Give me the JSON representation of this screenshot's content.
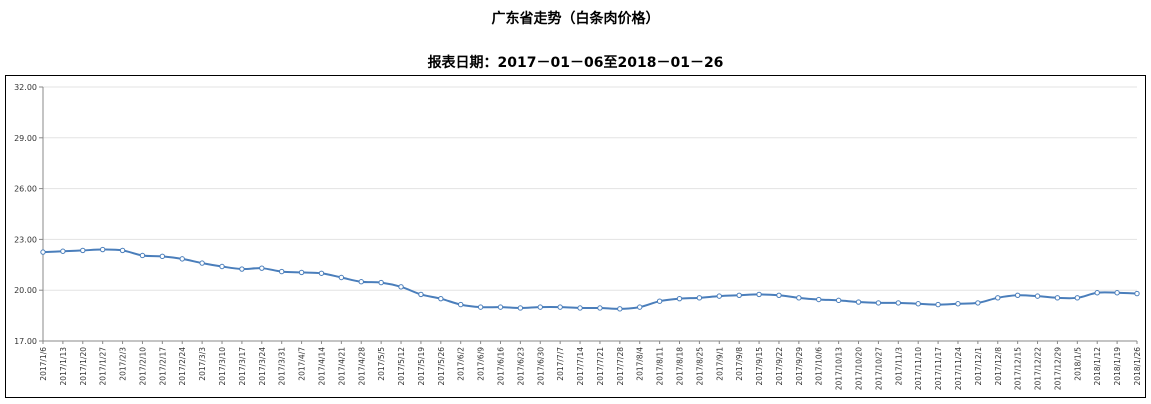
{
  "chart_data": {
    "type": "line",
    "title": "广东省走势（白条肉价格）",
    "subtitle": "报表日期：2017－01－06至2018－01－26",
    "ylim": [
      17.0,
      32.0
    ],
    "yticks": [
      "17.00",
      "20.00",
      "23.00",
      "26.00",
      "29.00",
      "32.00"
    ],
    "grid": true,
    "line_color": "#4A7EBB",
    "x": [
      "2017/1/6",
      "2017/1/13",
      "2017/1/20",
      "2017/1/27",
      "2017/2/3",
      "2017/2/10",
      "2017/2/17",
      "2017/2/24",
      "2017/3/3",
      "2017/3/10",
      "2017/3/17",
      "2017/3/24",
      "2017/3/31",
      "2017/4/7",
      "2017/4/14",
      "2017/4/21",
      "2017/4/28",
      "2017/5/5",
      "2017/5/12",
      "2017/5/19",
      "2017/5/26",
      "2017/6/2",
      "2017/6/9",
      "2017/6/16",
      "2017/6/23",
      "2017/6/30",
      "2017/7/7",
      "2017/7/14",
      "2017/7/21",
      "2017/7/28",
      "2017/8/4",
      "2017/8/11",
      "2017/8/18",
      "2017/8/25",
      "2017/9/1",
      "2017/9/8",
      "2017/9/15",
      "2017/9/22",
      "2017/9/29",
      "2017/10/6",
      "2017/10/13",
      "2017/10/20",
      "2017/10/27",
      "2017/11/3",
      "2017/11/10",
      "2017/11/17",
      "2017/11/24",
      "2017/12/1",
      "2017/12/8",
      "2017/12/15",
      "2017/12/22",
      "2017/12/29",
      "2018/1/5",
      "2018/1/12",
      "2018/1/19",
      "2018/1/26"
    ],
    "values": [
      22.25,
      22.3,
      22.35,
      22.4,
      22.35,
      22.05,
      22.0,
      21.85,
      21.6,
      21.4,
      21.25,
      21.3,
      21.1,
      21.05,
      21.0,
      20.75,
      20.5,
      20.45,
      20.2,
      19.75,
      19.5,
      19.15,
      19.0,
      19.0,
      18.95,
      19.0,
      19.0,
      18.95,
      18.95,
      18.9,
      19.0,
      19.35,
      19.5,
      19.55,
      19.65,
      19.7,
      19.75,
      19.7,
      19.55,
      19.45,
      19.4,
      19.3,
      19.25,
      19.25,
      19.2,
      19.15,
      19.2,
      19.25,
      19.55,
      19.7,
      19.65,
      19.55,
      19.55,
      19.85,
      19.85,
      19.8
    ]
  }
}
